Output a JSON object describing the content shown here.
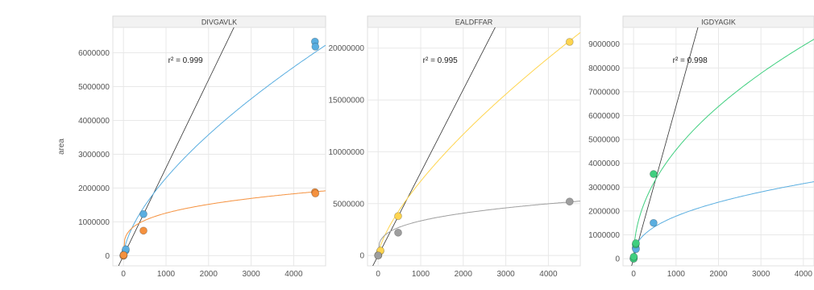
{
  "chart_data": {
    "type": "scatter",
    "ylabel": "area",
    "xlabel": "",
    "panels": [
      {
        "title": "DIVGAVLK",
        "r2_label": "r² = 0.999",
        "xlim": [
          -250,
          4750
        ],
        "ylim": [
          -300000,
          6750000
        ],
        "xticks": [
          0,
          1000,
          2000,
          3000,
          4000
        ],
        "xtick_labels": [
          "0",
          "1000",
          "2000",
          "3000",
          "4000"
        ],
        "yticks": [
          0,
          1000000,
          2000000,
          3000000,
          4000000,
          5000000,
          6000000
        ],
        "ytick_labels": [
          "0",
          "1000000",
          "2000000",
          "3000000",
          "4000000",
          "5000000",
          "6000000"
        ],
        "series": [
          {
            "color": "#5aaee0",
            "points": [
              [
                0,
                0
              ],
              [
                5,
                30000
              ],
              [
                50,
                150000
              ],
              [
                55,
                190000
              ],
              [
                470,
                1230000
              ],
              [
                4500,
                6330000
              ],
              [
                4510,
                6180000
              ]
            ],
            "curve": {
              "a": 27600,
              "b": 0.64
            }
          },
          {
            "color": "#f5913e",
            "points": [
              [
                0,
                0
              ],
              [
                5,
                20000
              ],
              [
                470,
                740000
              ],
              [
                4500,
                1880000
              ],
              [
                4510,
                1840000
              ]
            ],
            "curve": {
              "a": 195000,
              "b": 0.27
            }
          }
        ],
        "reference_line": {
          "slope": 2600,
          "intercept": 0
        }
      },
      {
        "title": "EALDFFAR",
        "r2_label": "r² = 0.995",
        "xlim": [
          -250,
          4750
        ],
        "ylim": [
          -1000000,
          22000000
        ],
        "xticks": [
          0,
          1000,
          2000,
          3000,
          4000
        ],
        "xtick_labels": [
          "0",
          "1000",
          "2000",
          "3000",
          "4000"
        ],
        "yticks": [
          0,
          5000000,
          10000000,
          15000000,
          20000000
        ],
        "ytick_labels": [
          "0",
          "5000000",
          "10000000",
          "15000000",
          "20000000"
        ],
        "series": [
          {
            "color": "#ffd54f",
            "points": [
              [
                0,
                0
              ],
              [
                5,
                40000
              ],
              [
                50,
                420000
              ],
              [
                55,
                470000
              ],
              [
                470,
                3800000
              ],
              [
                4500,
                20600000
              ]
            ],
            "curve": {
              "a": 55000,
              "b": 0.705
            }
          },
          {
            "color": "#9e9e9e",
            "points": [
              [
                0,
                0
              ],
              [
                470,
                2200000
              ],
              [
                4500,
                5200000
              ]
            ],
            "curve": {
              "a": 450000,
              "b": 0.29
            }
          }
        ],
        "reference_line": {
          "slope": 8000,
          "intercept": 0
        }
      },
      {
        "title": "IGDYAGIK",
        "r2_label": "r² = 0.998",
        "xlim": [
          -250,
          4250
        ],
        "ylim": [
          -300000,
          9700000
        ],
        "xticks": [
          0,
          1000,
          2000,
          3000,
          4000
        ],
        "xtick_labels": [
          "0",
          "1000",
          "2000",
          "3000",
          "4000"
        ],
        "yticks": [
          0,
          1000000,
          2000000,
          3000000,
          4000000,
          5000000,
          6000000,
          7000000,
          8000000,
          9000000
        ],
        "ytick_labels": [
          "0",
          "1000000",
          "2000000",
          "3000000",
          "4000000",
          "5000000",
          "6000000",
          "7000000",
          "8000000",
          "9000000"
        ],
        "series": [
          {
            "color": "#5aaee0",
            "points": [
              [
                0,
                0
              ],
              [
                5,
                50000
              ],
              [
                50,
                450000
              ],
              [
                55,
                400000
              ],
              [
                470,
                1500000
              ]
            ],
            "curve": {
              "a": 105000,
              "b": 0.41
            }
          },
          {
            "color": "#3fcf7f",
            "points": [
              [
                0,
                0
              ],
              [
                5,
                80000
              ],
              [
                50,
                600000
              ],
              [
                55,
                650000
              ],
              [
                470,
                3550000
              ]
            ],
            "curve": {
              "a": 160000,
              "b": 0.485
            }
          }
        ],
        "reference_line": {
          "slope": 6400,
          "intercept": 0
        }
      }
    ]
  }
}
